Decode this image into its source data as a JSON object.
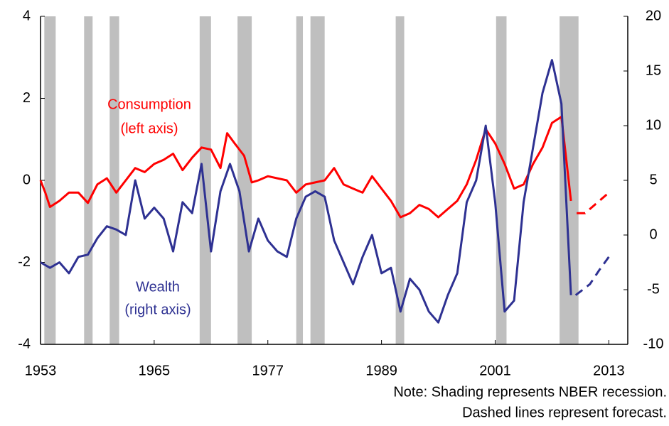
{
  "chart_data": {
    "type": "line",
    "xlim": [
      1953,
      2015
    ],
    "xticks": [
      1953,
      1965,
      1977,
      1989,
      2001,
      2013
    ],
    "ylim": [
      -4,
      4
    ],
    "yticks": [
      -4,
      -2,
      0,
      2,
      4
    ],
    "y2lim": [
      -10,
      20
    ],
    "y2ticks": [
      -10,
      -5,
      0,
      5,
      10,
      15,
      20
    ],
    "recession_color": "#bfbfbf",
    "recessions": [
      [
        1953.4,
        1954.6
      ],
      [
        1957.6,
        1958.5
      ],
      [
        1960.3,
        1961.3
      ],
      [
        1969.8,
        1971.0
      ],
      [
        1973.8,
        1975.3
      ],
      [
        1980.0,
        1980.7
      ],
      [
        1981.5,
        1983.0
      ],
      [
        1990.5,
        1991.4
      ],
      [
        2001.1,
        2002.2
      ],
      [
        2007.8,
        2009.8
      ]
    ],
    "series": [
      {
        "name": "Consumption",
        "axis_note": "(left axis)",
        "color": "#ff0000",
        "x": [
          1953,
          1953.5,
          1954,
          1955,
          1956,
          1957,
          1958,
          1959,
          1960,
          1961,
          1962,
          1963,
          1964,
          1965,
          1966,
          1967,
          1968,
          1969,
          1970,
          1971,
          1972,
          1972.7,
          1973.5,
          1974.5,
          1975.3,
          1976,
          1977,
          1978,
          1979,
          1980,
          1980.5,
          1981,
          1982,
          1983,
          1984,
          1985,
          1986,
          1987,
          1988,
          1989,
          1990,
          1991,
          1992,
          1993,
          1994,
          1995,
          1996,
          1997,
          1998,
          1999,
          2000,
          2001,
          2002,
          2003,
          2004,
          2005,
          2006,
          2007,
          2008,
          2009
        ],
        "values": [
          0,
          -0.3,
          -0.65,
          -0.5,
          -0.3,
          -0.3,
          -0.55,
          -0.1,
          0.05,
          -0.3,
          0.0,
          0.3,
          0.2,
          0.4,
          0.5,
          0.65,
          0.25,
          0.55,
          0.8,
          0.75,
          0.3,
          1.15,
          0.9,
          0.6,
          -0.05,
          0.0,
          0.1,
          0.05,
          0.0,
          -0.3,
          -0.2,
          -0.1,
          -0.05,
          0.0,
          0.3,
          -0.1,
          -0.2,
          -0.3,
          0.1,
          -0.2,
          -0.5,
          -0.9,
          -0.8,
          -0.6,
          -0.7,
          -0.9,
          -0.7,
          -0.5,
          -0.1,
          0.5,
          1.25,
          0.9,
          0.4,
          -0.2,
          -0.1,
          0.4,
          0.8,
          1.4,
          1.55,
          -0.5
        ]
      },
      {
        "dashed": true,
        "color": "#ff0000",
        "x": [
          2009.6,
          2010.5,
          2011.5,
          2013
        ],
        "values": [
          -0.8,
          -0.8,
          -0.6,
          -0.3
        ]
      },
      {
        "name": "Wealth",
        "axis_note": "(right axis)",
        "color": "#2e3192",
        "axis": "y2",
        "x": [
          1953,
          1954,
          1955,
          1956,
          1957,
          1958,
          1959,
          1960,
          1961,
          1962,
          1963,
          1964,
          1965,
          1966,
          1967,
          1968,
          1969,
          1970,
          1971,
          1972,
          1973,
          1974,
          1975,
          1976,
          1977,
          1978,
          1979,
          1980,
          1981,
          1982,
          1983,
          1984,
          1985,
          1986,
          1987,
          1988,
          1989,
          1990,
          1991,
          1992,
          1993,
          1994,
          1995,
          1996,
          1997,
          1998,
          1999,
          2000,
          2001,
          2002,
          2003,
          2004,
          2005,
          2006,
          2007,
          2008,
          2009
        ],
        "values": [
          -2.5,
          -3,
          -2.5,
          -3.5,
          -2,
          -1.8,
          -0.3,
          0.8,
          0.5,
          0,
          5,
          1.5,
          2.5,
          1.5,
          -1.5,
          3,
          2,
          6.5,
          -1.5,
          4,
          6.5,
          4,
          -1.5,
          1.5,
          -0.5,
          -1.5,
          -2,
          1.5,
          3.5,
          4,
          3.5,
          -0.5,
          -2.5,
          -4.5,
          -2,
          0,
          -3.5,
          -3,
          -7,
          -4,
          -5,
          -7,
          -8,
          -5.5,
          -3.5,
          3,
          5,
          10,
          3,
          -7,
          -6,
          3,
          8,
          13,
          16,
          12,
          -5.5
        ]
      },
      {
        "dashed": true,
        "color": "#2e3192",
        "axis": "y2",
        "x": [
          2009.5,
          2011,
          2012,
          2013
        ],
        "values": [
          -5.5,
          -4.5,
          -3.2,
          -2
        ]
      }
    ],
    "notes": [
      "Note: Shading represents NBER recession.",
      "Dashed lines represent forecast."
    ]
  }
}
